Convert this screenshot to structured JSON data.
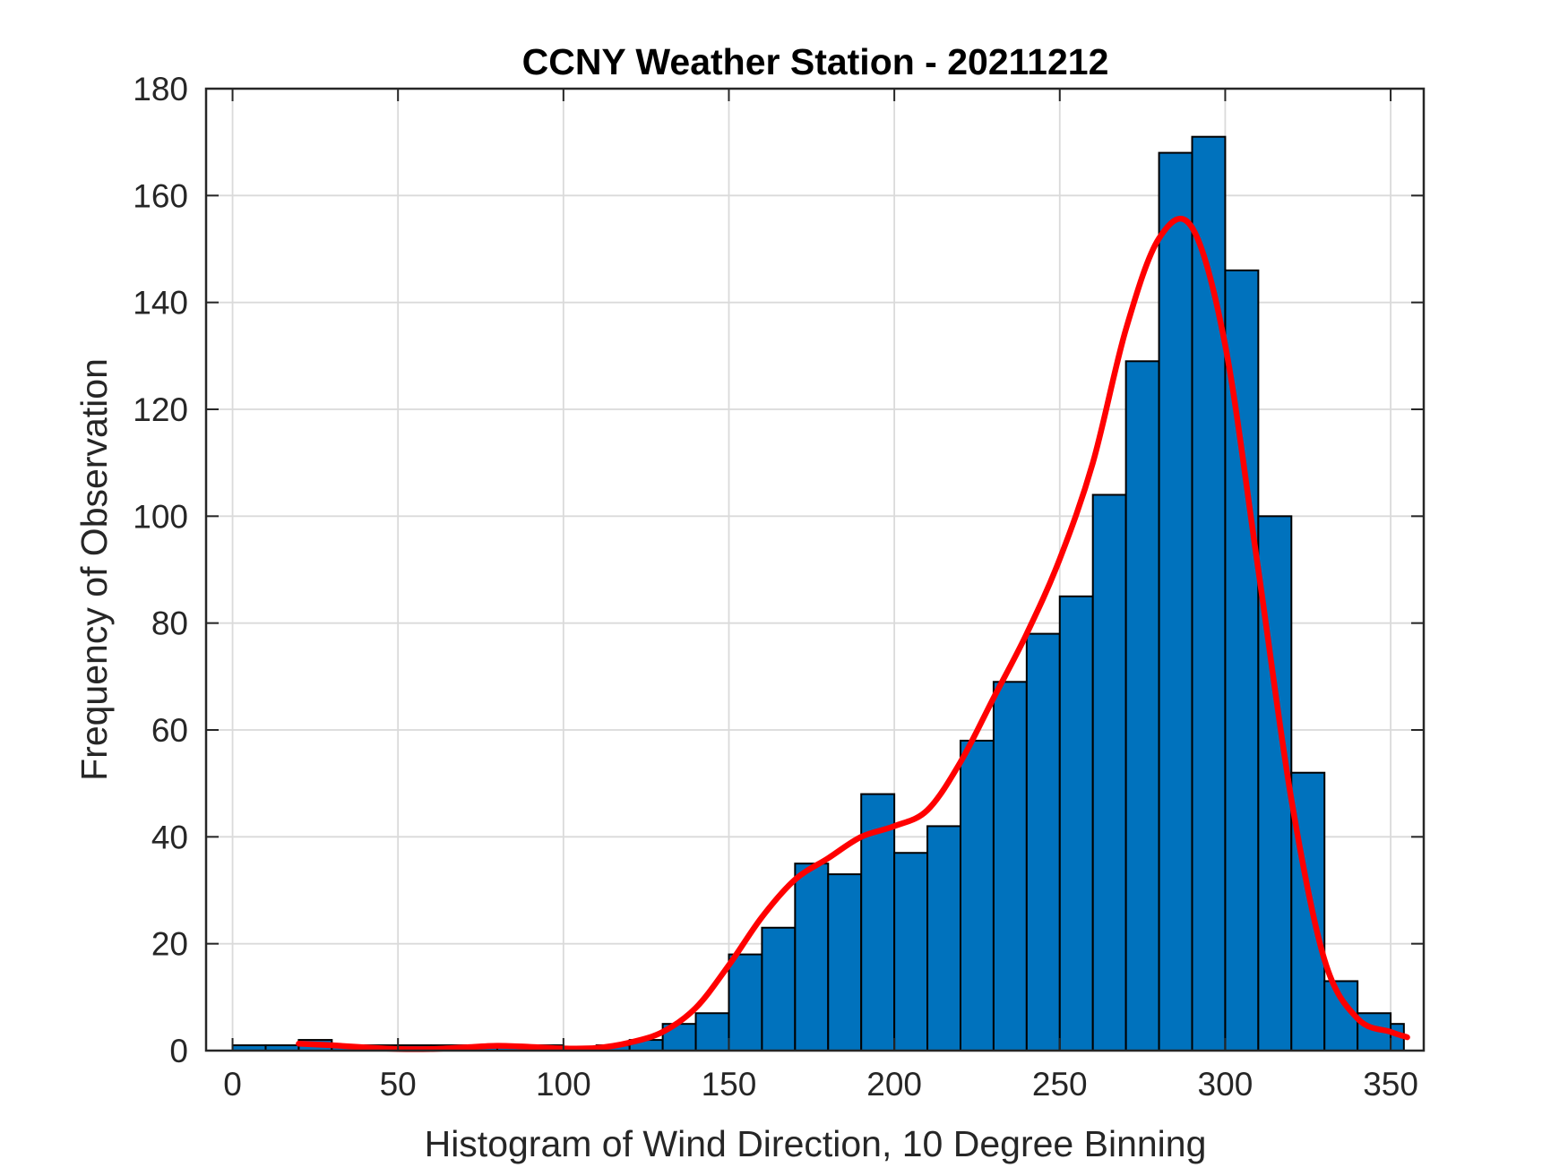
{
  "chart_data": {
    "type": "bar",
    "title": "CCNY Weather Station - 20211212",
    "xlabel": "Histogram of Wind Direction, 10 Degree Binning",
    "ylabel": "Frequency of Observation",
    "xlim": [
      -8,
      360
    ],
    "ylim": [
      0,
      180
    ],
    "xticks": [
      0,
      50,
      100,
      150,
      200,
      250,
      300,
      350
    ],
    "yticks": [
      0,
      20,
      40,
      60,
      80,
      100,
      120,
      140,
      160,
      180
    ],
    "grid": true,
    "bin_width": 10,
    "bin_edges": [
      0,
      10,
      20,
      30,
      40,
      50,
      60,
      70,
      80,
      90,
      100,
      110,
      120,
      130,
      140,
      150,
      160,
      170,
      180,
      190,
      200,
      210,
      220,
      230,
      240,
      250,
      260,
      270,
      280,
      290,
      300,
      310,
      320,
      330,
      340,
      350,
      354
    ],
    "values": [
      1,
      1,
      2,
      1,
      1,
      1,
      1,
      1,
      1,
      1,
      0,
      1,
      2,
      5,
      7,
      18,
      23,
      35,
      33,
      48,
      37,
      42,
      58,
      69,
      78,
      85,
      104,
      129,
      168,
      171,
      146,
      100,
      52,
      13,
      7,
      5
    ],
    "bar_color": "#0072BD",
    "bar_edge_color": "#000000",
    "series": [
      {
        "type": "line",
        "color": "#FF0000",
        "x": [
          20,
          30,
          40,
          50,
          60,
          70,
          80,
          90,
          100,
          110,
          120,
          130,
          140,
          150,
          160,
          170,
          180,
          190,
          200,
          210,
          220,
          230,
          240,
          250,
          260,
          270,
          280,
          290,
          300,
          310,
          320,
          330,
          340,
          350,
          355
        ],
        "y": [
          1.3,
          1.0,
          0.6,
          0.3,
          0.3,
          0.6,
          0.9,
          0.7,
          0.4,
          0.5,
          1.5,
          3.5,
          8,
          16,
          25,
          32,
          36,
          40,
          42,
          45,
          54,
          66,
          78,
          92,
          110,
          135,
          152,
          154,
          132,
          90,
          47,
          17,
          6,
          3.5,
          2.5
        ]
      }
    ]
  }
}
